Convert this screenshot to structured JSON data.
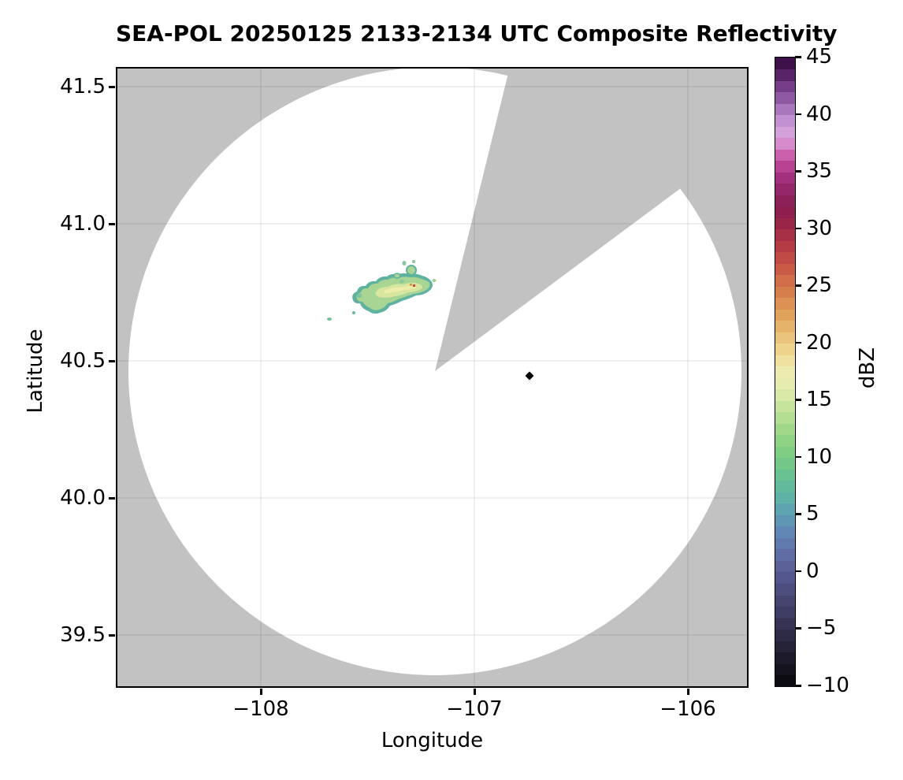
{
  "title": "SEA-POL 20250125 2133-2134 UTC Composite Reflectivity",
  "axes": {
    "xlabel": "Longitude",
    "ylabel": "Latitude",
    "xticks": [
      {
        "label": "−108",
        "value": -108
      },
      {
        "label": "−107",
        "value": -107
      },
      {
        "label": "−106",
        "value": -106
      }
    ],
    "yticks": [
      {
        "label": "41.5",
        "value": 41.5
      },
      {
        "label": "41.0",
        "value": 41.0
      },
      {
        "label": "40.5",
        "value": 40.5
      },
      {
        "label": "40.0",
        "value": 40.0
      },
      {
        "label": "39.5",
        "value": 39.5
      }
    ]
  },
  "colorbar": {
    "label": "dBZ",
    "min": -10,
    "max": 45,
    "step_dbz": 1,
    "ticks": [
      {
        "label": "45",
        "value": 45
      },
      {
        "label": "40",
        "value": 40
      },
      {
        "label": "35",
        "value": 35
      },
      {
        "label": "30",
        "value": 30
      },
      {
        "label": "25",
        "value": 25
      },
      {
        "label": "20",
        "value": 20
      },
      {
        "label": "15",
        "value": 15
      },
      {
        "label": "10",
        "value": 10
      },
      {
        "label": "5",
        "value": 5
      },
      {
        "label": "0",
        "value": 0
      },
      {
        "label": "−5",
        "value": -5
      },
      {
        "label": "−10",
        "value": -10
      }
    ],
    "anchors": [
      [
        -10,
        "#070707"
      ],
      [
        -9,
        "#100f17"
      ],
      [
        -8,
        "#191723"
      ],
      [
        -7,
        "#211f31"
      ],
      [
        -6,
        "#2a273f"
      ],
      [
        -5,
        "#322f4d"
      ],
      [
        -4,
        "#3a375b"
      ],
      [
        -3,
        "#424069"
      ],
      [
        -2,
        "#494977"
      ],
      [
        -1,
        "#515284"
      ],
      [
        0,
        "#575c91"
      ],
      [
        1,
        "#5d679e"
      ],
      [
        2,
        "#6073a9"
      ],
      [
        3,
        "#6181b2"
      ],
      [
        4,
        "#608fb5"
      ],
      [
        5,
        "#5e9db3"
      ],
      [
        6,
        "#5dabac"
      ],
      [
        7,
        "#5fb6a1"
      ],
      [
        8,
        "#64be96"
      ],
      [
        9,
        "#6dc58b"
      ],
      [
        10,
        "#78cb84"
      ],
      [
        11,
        "#87d083"
      ],
      [
        12,
        "#98d586"
      ],
      [
        13,
        "#aadb8d"
      ],
      [
        14,
        "#bde096"
      ],
      [
        15,
        "#cfe5a0"
      ],
      [
        16,
        "#e0eaab"
      ],
      [
        17,
        "#ebeeb4"
      ],
      [
        18,
        "#efe7a9"
      ],
      [
        19,
        "#eeda95"
      ],
      [
        20,
        "#ebcc83"
      ],
      [
        21,
        "#e7bc71"
      ],
      [
        22,
        "#e3ab62"
      ],
      [
        23,
        "#df9a56"
      ],
      [
        24,
        "#da884e"
      ],
      [
        25,
        "#d4764a"
      ],
      [
        26,
        "#cd6447"
      ],
      [
        27,
        "#c55245"
      ],
      [
        28,
        "#bb4244"
      ],
      [
        29,
        "#ae3445"
      ],
      [
        30,
        "#a02a47"
      ],
      [
        31,
        "#921f4a"
      ],
      [
        32,
        "#8a1d52"
      ],
      [
        33,
        "#8f2160"
      ],
      [
        34,
        "#9b2a72"
      ],
      [
        35,
        "#ab3685"
      ],
      [
        36,
        "#c44e9e"
      ],
      [
        37,
        "#d272bb"
      ],
      [
        38,
        "#d9a5dc"
      ],
      [
        39,
        "#cf9dd9"
      ],
      [
        40,
        "#b585c8"
      ],
      [
        41,
        "#9c68b0"
      ],
      [
        42,
        "#834c96"
      ],
      [
        43,
        "#672f78"
      ],
      [
        44,
        "#4b1656"
      ],
      [
        45,
        "#330b3d"
      ]
    ]
  },
  "colors": {
    "out_of_range_gray": "#c2c2c2",
    "coverage_white": "#ffffff",
    "marker_black": "#000000",
    "echo_teal_edge": "#5fb2a0",
    "echo_green_body": "#a8d593",
    "echo_core": "#d7e69e",
    "echo_streak": "#eceda8",
    "echo_red_pixel": "#cd4b36"
  },
  "chart_data": {
    "type": "heatmap",
    "title": "SEA-POL 20250125 2133-2134 UTC Composite Reflectivity",
    "xlabel": "Longitude",
    "ylabel": "Latitude",
    "xlim": [
      -108.68,
      -105.72
    ],
    "ylim": [
      39.31,
      41.57
    ],
    "xticks": [
      -108,
      -107,
      -106
    ],
    "yticks": [
      39.5,
      40.0,
      40.5,
      41.0,
      41.5
    ],
    "grid": true,
    "colorbar_label": "dBZ",
    "colorbar_range": [
      -10,
      45
    ],
    "colorbar_tick_step": 5,
    "radar_site": {
      "lon": -107.19,
      "lat": 40.47,
      "coverage_radius_deg_lat": 1.11
    },
    "coverage": "white filled circle of radar range on gray out-of-range background",
    "blocked_sector": {
      "azimuth_start_deg": 14,
      "azimuth_end_deg": 53,
      "appearance": "gray wedge of missing data from radar center to edge of range, merging with background in upper right"
    },
    "echoes": [
      {
        "lon_center": -107.38,
        "lat_center": 40.76,
        "extent_lon": [
          -107.56,
          -107.25
        ],
        "extent_lat": [
          40.7,
          40.83
        ],
        "dbz_range": [
          8,
          18
        ],
        "max_dbz_pixel": 28,
        "description": "small elongated WSW-ENE precipitation echo; green and yellow-green interior with teal edges, one orange-red pixel, several detached specks"
      }
    ],
    "site_marker": {
      "lon": -106.74,
      "lat": 40.44,
      "shape": "filled diamond",
      "color": "#000000"
    }
  }
}
